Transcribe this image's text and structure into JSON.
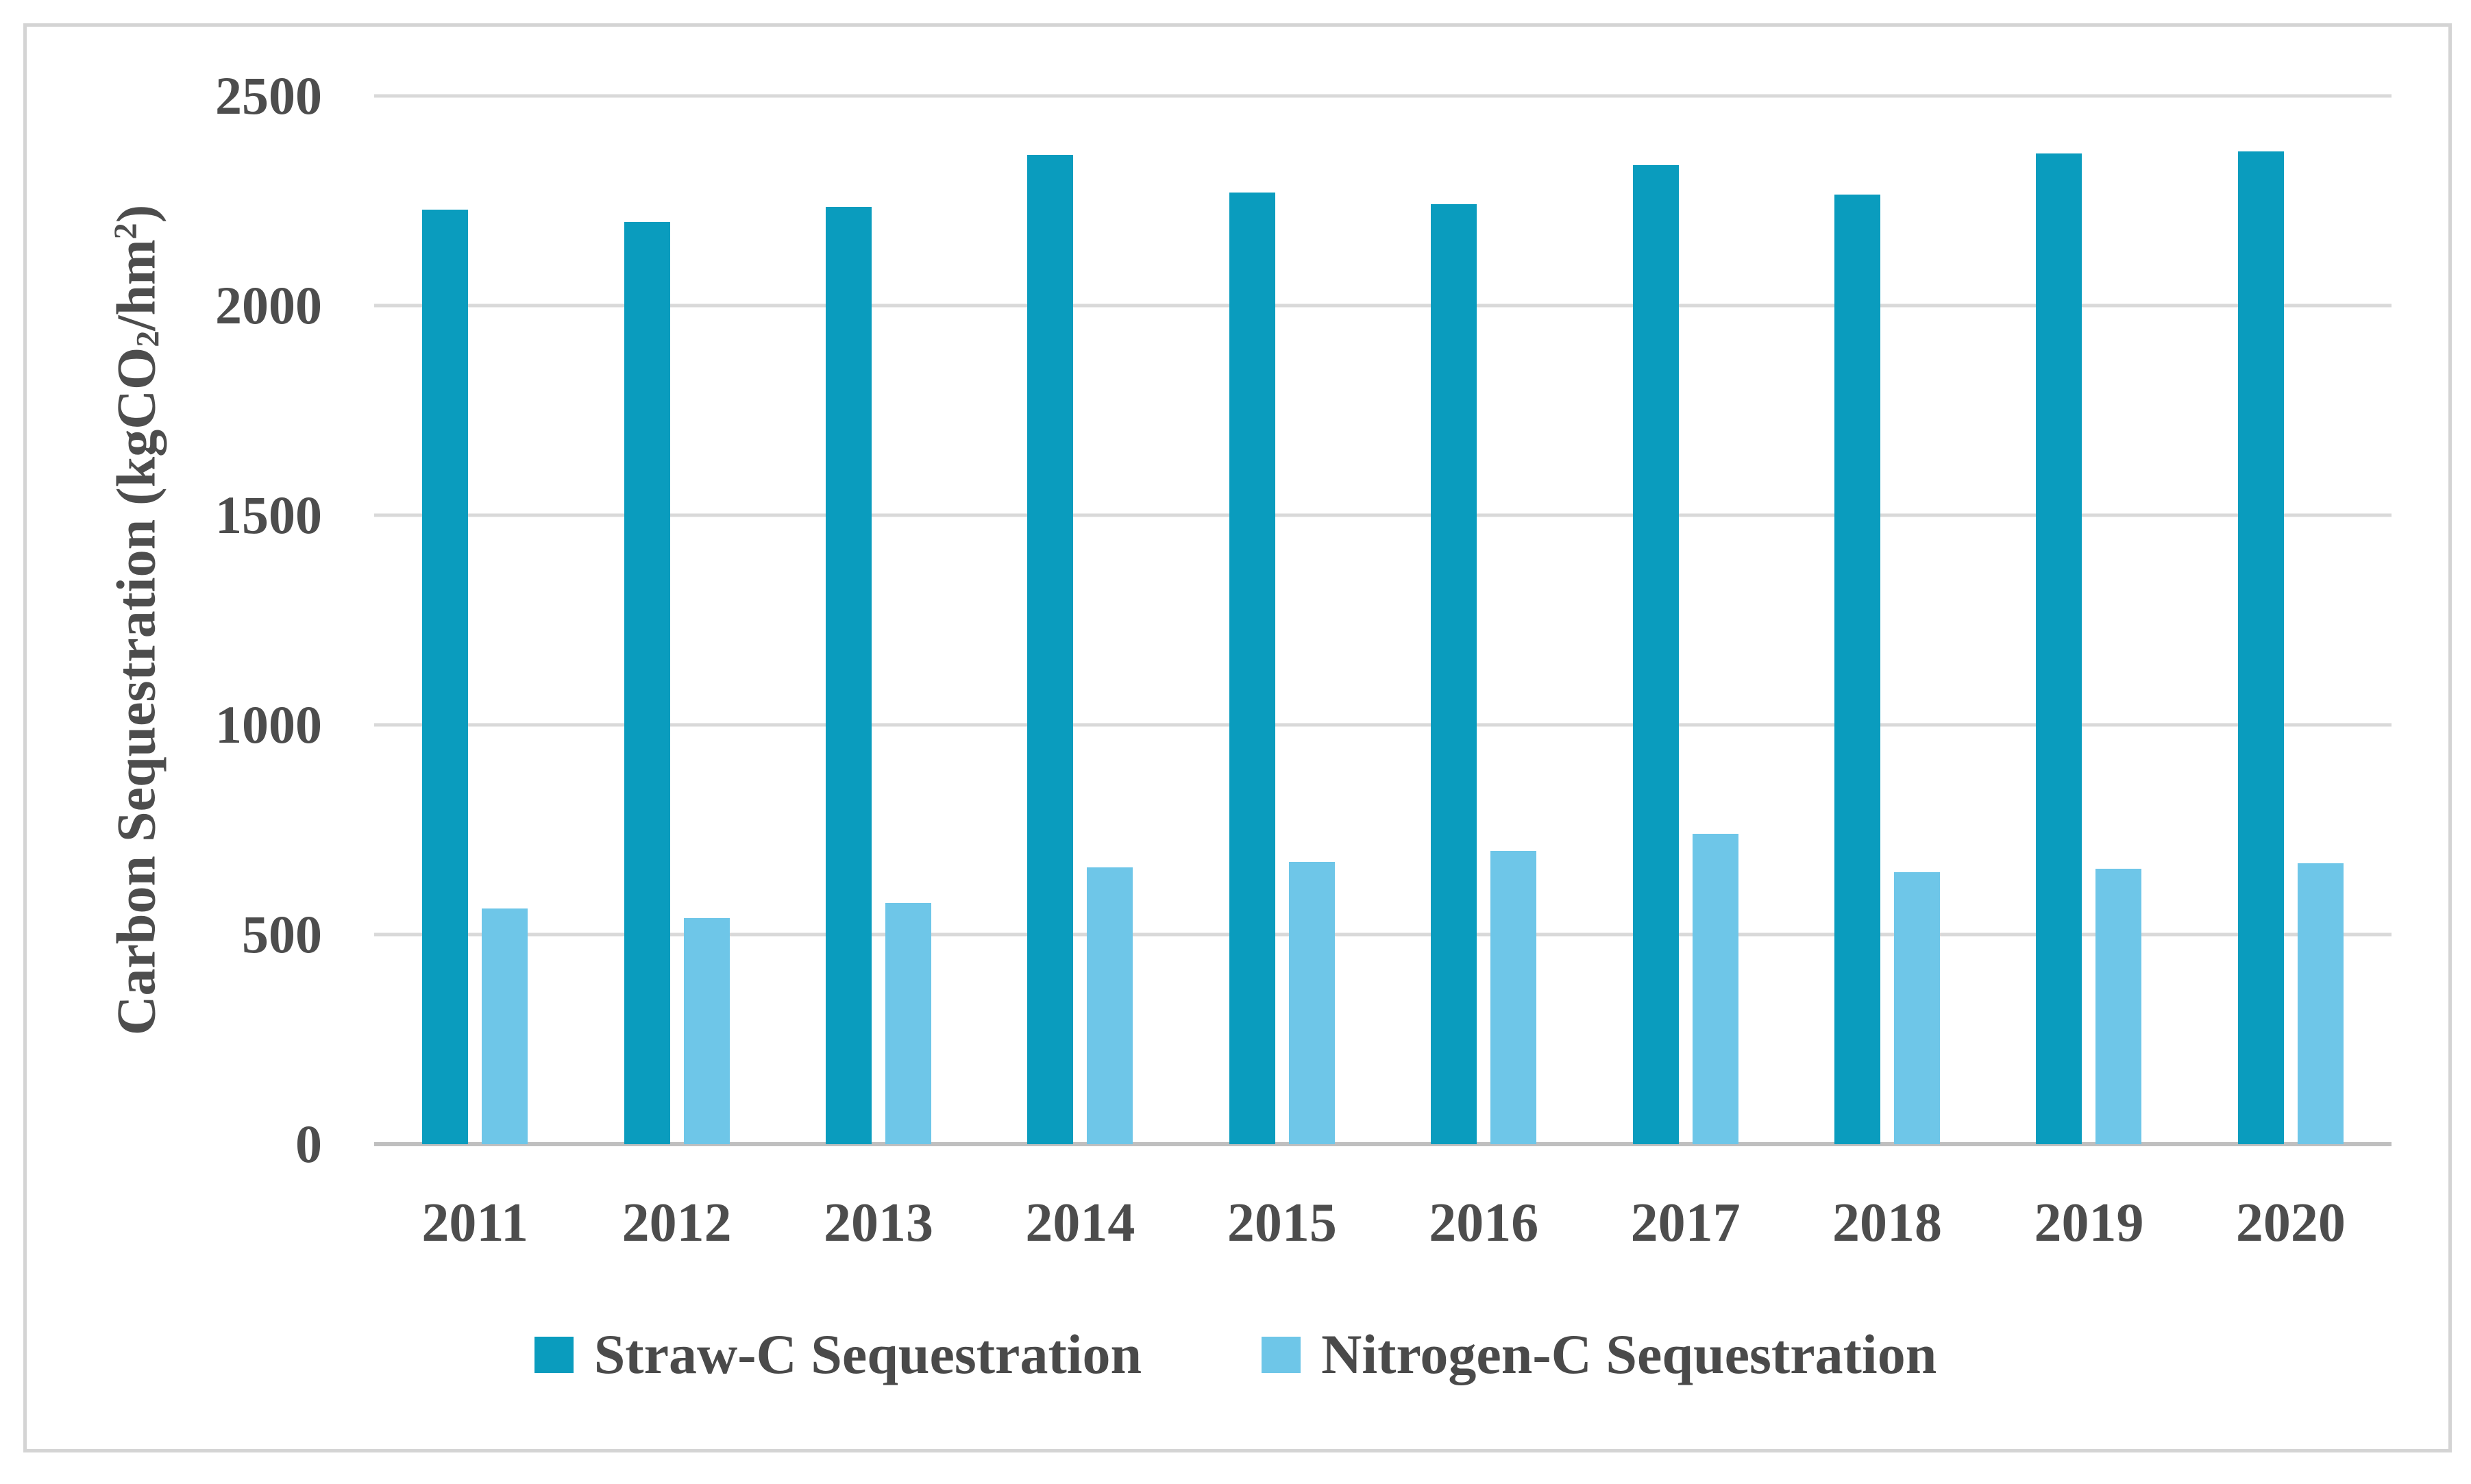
{
  "chart_data": {
    "type": "bar",
    "title": "",
    "categories": [
      "2011",
      "2012",
      "2013",
      "2014",
      "2015",
      "2016",
      "2017",
      "2018",
      "2019",
      "2020"
    ],
    "series": [
      {
        "name": "Straw-C Sequestration",
        "color": "#0a9cbe",
        "values": [
          2228,
          2200,
          2235,
          2360,
          2270,
          2242,
          2335,
          2264,
          2362,
          2367
        ]
      },
      {
        "name": "Nitrogen-C Sequestration",
        "color": "#6ec6e8",
        "values": [
          562,
          540,
          575,
          660,
          673,
          700,
          740,
          649,
          657,
          670
        ]
      }
    ],
    "xlabel": "",
    "ylabel_text": "Carbon Sequestration (kgCO2/hm2)",
    "ylabel": {
      "pre": "Carbon Sequestration (kgCO",
      "sub": "2",
      "mid": "/hm",
      "sup": "2",
      "post": ")"
    },
    "yticks": [
      0,
      500,
      1000,
      1500,
      2000,
      2500
    ],
    "ylim": [
      0,
      2500
    ],
    "grid": true,
    "legend_position": "bottom"
  },
  "colors": {
    "straw_bar": "#0a9cbe",
    "nitrogen_bar": "#6ec6e8",
    "gridline": "#d9d9d9",
    "axis_line": "#bfbfbf",
    "frame_border": "#d4d4d4",
    "label_text": "#4d4d4d",
    "background": "#ffffff"
  }
}
